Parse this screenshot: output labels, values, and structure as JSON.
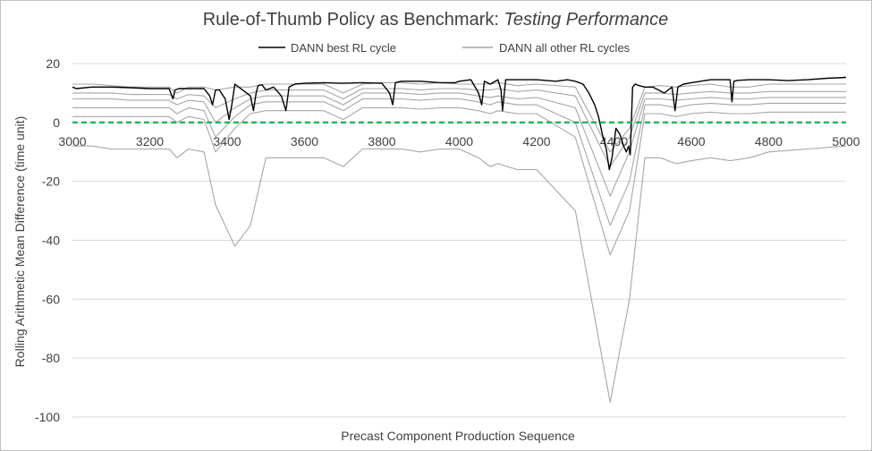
{
  "chart_data": {
    "type": "line",
    "title_main": "Rule-of-Thumb Policy as Benchmark: ",
    "title_italic": "Testing Performance",
    "xlabel": "Precast Component Production Sequence",
    "ylabel": "Rolling Arithmetic Mean Difference (time unit)",
    "xlim": [
      3000,
      5000
    ],
    "ylim": [
      -100,
      20
    ],
    "x_ticks": [
      "3000",
      "3200",
      "3400",
      "3600",
      "3800",
      "4000",
      "4200",
      "4400",
      "4600",
      "4800",
      "5000"
    ],
    "y_ticks": [
      "20",
      "0",
      "-20",
      "-40",
      "-60",
      "-80",
      "-100"
    ],
    "grid": "horizontal",
    "legend_position": "top-center",
    "reference_line": {
      "y": 0,
      "style": "dashed",
      "color": "#00b050"
    },
    "series": [
      {
        "name": "DANN best RL cycle",
        "color": "#000000",
        "x": [
          3000,
          3010,
          3050,
          3100,
          3150,
          3200,
          3250,
          3260,
          3265,
          3275,
          3300,
          3340,
          3355,
          3362,
          3370,
          3380,
          3395,
          3405,
          3412,
          3420,
          3440,
          3460,
          3468,
          3475,
          3480,
          3490,
          3500,
          3520,
          3540,
          3552,
          3560,
          3575,
          3600,
          3650,
          3700,
          3750,
          3800,
          3820,
          3828,
          3835,
          3850,
          3900,
          3950,
          3990,
          4000,
          4030,
          4050,
          4058,
          4065,
          4080,
          4100,
          4108,
          4112,
          4120,
          4150,
          4200,
          4250,
          4280,
          4300,
          4320,
          4335,
          4350,
          4360,
          4370,
          4380,
          4388,
          4395,
          4405,
          4415,
          4425,
          4432,
          4438,
          4442,
          4448,
          4455,
          4465,
          4480,
          4500,
          4530,
          4550,
          4558,
          4565,
          4580,
          4600,
          4650,
          4700,
          4705,
          4710,
          4720,
          4750,
          4800,
          4850,
          4900,
          4950,
          5000
        ],
        "y": [
          12,
          11.5,
          12,
          12,
          11.8,
          11.5,
          11.5,
          8,
          11,
          11.5,
          11.5,
          11.5,
          9,
          6,
          11,
          11,
          8,
          1,
          6,
          13,
          11,
          9,
          4,
          10,
          12.5,
          12.8,
          11,
          12,
          9,
          4,
          12,
          13,
          13.3,
          13.5,
          13.3,
          13.5,
          13.3,
          10,
          6,
          13.5,
          14,
          14,
          13.5,
          13.5,
          14,
          14.5,
          10,
          6,
          14,
          13,
          14.5,
          11,
          4,
          14.5,
          14.5,
          14.5,
          14,
          14.5,
          14,
          13,
          10,
          6,
          2,
          -4,
          -9,
          -16,
          -12,
          -2,
          -4,
          -8,
          -10,
          -8,
          -11,
          12,
          13,
          12.5,
          12,
          12,
          10,
          12,
          4,
          12,
          13,
          13.5,
          14.5,
          14.5,
          7,
          14,
          14.3,
          14.5,
          14.5,
          14.2,
          14.5,
          15,
          15.3
        ]
      },
      {
        "name": "DANN all other RL cycles",
        "color": "#a6a6a6",
        "bands": [
          {
            "y": [
              13,
              13,
              12.5,
              12,
              12,
              12,
              10,
              12,
              12,
              11,
              12,
              12,
              13,
              13,
              13,
              13,
              10,
              13,
              13.5,
              13.5,
              13,
              13.5,
              13,
              13,
              13,
              13.5,
              12.5,
              13,
              12,
              -10,
              -2,
              12,
              12.5,
              12,
              12.5,
              13,
              12,
              12,
              13,
              13,
              13
            ]
          },
          {
            "y": [
              10,
              10,
              10,
              9.5,
              9.5,
              9.5,
              8,
              9.5,
              9,
              5,
              8,
              10,
              11,
              11,
              11,
              11,
              8,
              11.5,
              11.5,
              11.5,
              11,
              11.5,
              11.5,
              11,
              11,
              11.5,
              10.5,
              11,
              9,
              -15,
              -5,
              10,
              10,
              9.5,
              10,
              10.5,
              10,
              10,
              10.5,
              10.5,
              10.5
            ]
          },
          {
            "y": [
              8,
              8,
              8,
              7.5,
              7.5,
              7.5,
              6,
              7.5,
              7,
              0,
              5,
              8,
              9,
              9,
              9,
              9,
              6,
              10,
              10,
              10,
              9.5,
              10,
              10,
              9,
              8.5,
              9,
              8,
              8.5,
              5,
              -25,
              -10,
              8,
              8,
              7.5,
              8,
              8.5,
              8,
              8,
              8.5,
              8.5,
              8.5
            ]
          },
          {
            "y": [
              5,
              5,
              5,
              5,
              5,
              5,
              3,
              5,
              4,
              -5,
              2,
              6,
              7,
              7,
              7,
              7,
              4,
              8,
              8,
              8,
              7.5,
              8,
              8,
              7,
              6,
              7,
              6,
              6,
              0,
              -35,
              -20,
              6,
              6,
              5,
              6,
              6.5,
              6,
              6,
              6.5,
              6.5,
              6.5
            ]
          },
          {
            "y": [
              2,
              2,
              2,
              2,
              2,
              2,
              0,
              2,
              1,
              -10,
              -2,
              3,
              4,
              4,
              4,
              4,
              1,
              5,
              5,
              5,
              4.5,
              5,
              5,
              4,
              3,
              4,
              3,
              3,
              -5,
              -45,
              -30,
              3,
              3,
              2,
              3,
              3.5,
              3,
              3,
              3.5,
              3.5,
              3.5
            ]
          },
          {
            "y": [
              -8,
              -8,
              -9,
              -9,
              -9,
              -9,
              -12,
              -9,
              -10,
              -28,
              -42,
              -35,
              -12,
              -12,
              -12,
              -12,
              -15,
              -9,
              -9,
              -9,
              -10,
              -9,
              -9,
              -12,
              -15,
              -14,
              -16,
              -16,
              -30,
              -95,
              -60,
              -12,
              -12,
              -14,
              -13,
              -12,
              -13,
              -12,
              -10,
              -9,
              -8
            ]
          }
        ],
        "x": [
          3000,
          3050,
          3100,
          3150,
          3200,
          3250,
          3270,
          3300,
          3340,
          3370,
          3420,
          3460,
          3500,
          3550,
          3600,
          3650,
          3700,
          3750,
          3800,
          3850,
          3900,
          3950,
          4000,
          4050,
          4080,
          4100,
          4150,
          4200,
          4300,
          4390,
          4440,
          4480,
          4520,
          4560,
          4600,
          4650,
          4700,
          4750,
          4800,
          4900,
          5000
        ]
      }
    ]
  }
}
